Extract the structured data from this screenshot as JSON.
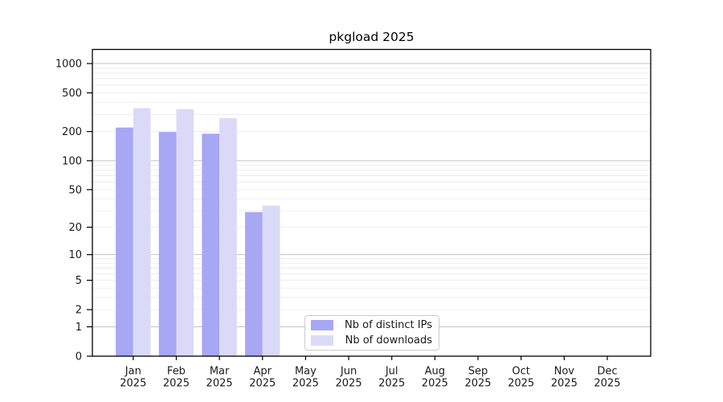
{
  "chart_data": {
    "type": "bar",
    "title": "pkgload 2025",
    "categories": [
      "Jan",
      "Feb",
      "Mar",
      "Apr",
      "May",
      "Jun",
      "Jul",
      "Aug",
      "Sep",
      "Oct",
      "Nov",
      "Dec"
    ],
    "year_label": "2025",
    "series": [
      {
        "name": "Nb of distinct IPs",
        "color": "#a7a7f3",
        "values": [
          220,
          198,
          190,
          29,
          0,
          0,
          0,
          0,
          0,
          0,
          0,
          0
        ]
      },
      {
        "name": "Nb of downloads",
        "color": "#dadaf8",
        "values": [
          348,
          340,
          275,
          34,
          0,
          0,
          0,
          0,
          0,
          0,
          0,
          0
        ]
      }
    ],
    "y_axis": {
      "scale": "log10(1+v)",
      "tick_labels": [
        0,
        1,
        2,
        5,
        10,
        20,
        50,
        100,
        200,
        500,
        1000
      ],
      "top_value": 1400
    },
    "grid": {
      "power_of_ten_line_color": "#c2c2c2",
      "minor_line_color": "#e9e9e9",
      "power_of_ten_lines": [
        1,
        10,
        100,
        1000
      ]
    },
    "legend_position": "lower center",
    "text_color": "#1a1a1a",
    "frame_color": "#000000"
  }
}
